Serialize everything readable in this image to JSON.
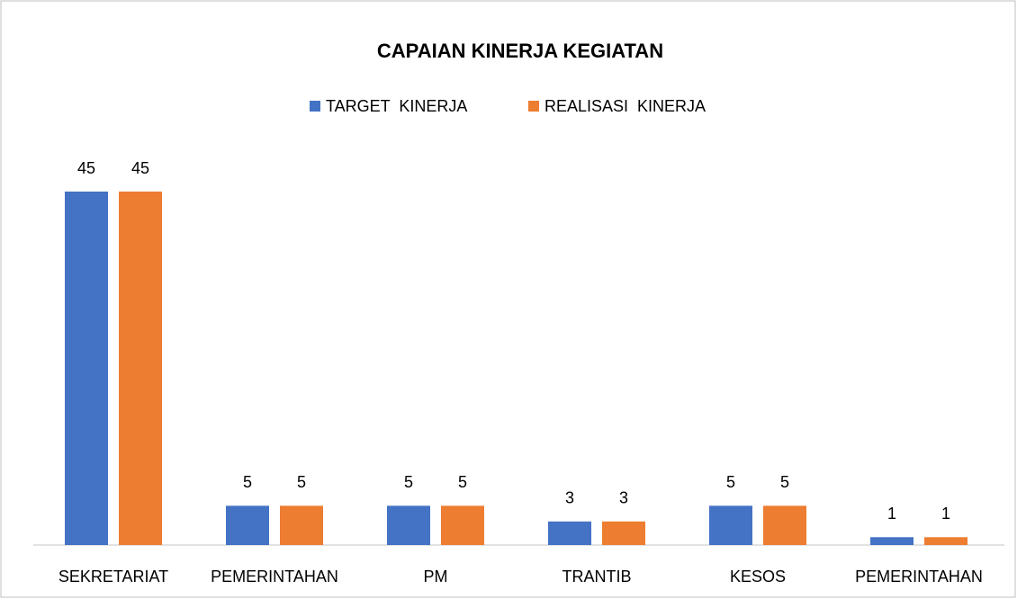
{
  "chart_data": {
    "type": "bar",
    "title": "CAPAIAN KINERJA KEGIATAN",
    "categories": [
      "SEKRETARIAT",
      "PEMERINTAHAN",
      "PM",
      "TRANTIB",
      "KESOS",
      "PEMERINTAHAN"
    ],
    "series": [
      {
        "name": "TARGET  KINERJA",
        "color": "#4472c4",
        "values": [
          45,
          5,
          5,
          3,
          5,
          1
        ]
      },
      {
        "name": "REALISASI  KINERJA",
        "color": "#ed7d31",
        "values": [
          45,
          5,
          5,
          3,
          5,
          1
        ]
      }
    ],
    "legend": "top"
  }
}
